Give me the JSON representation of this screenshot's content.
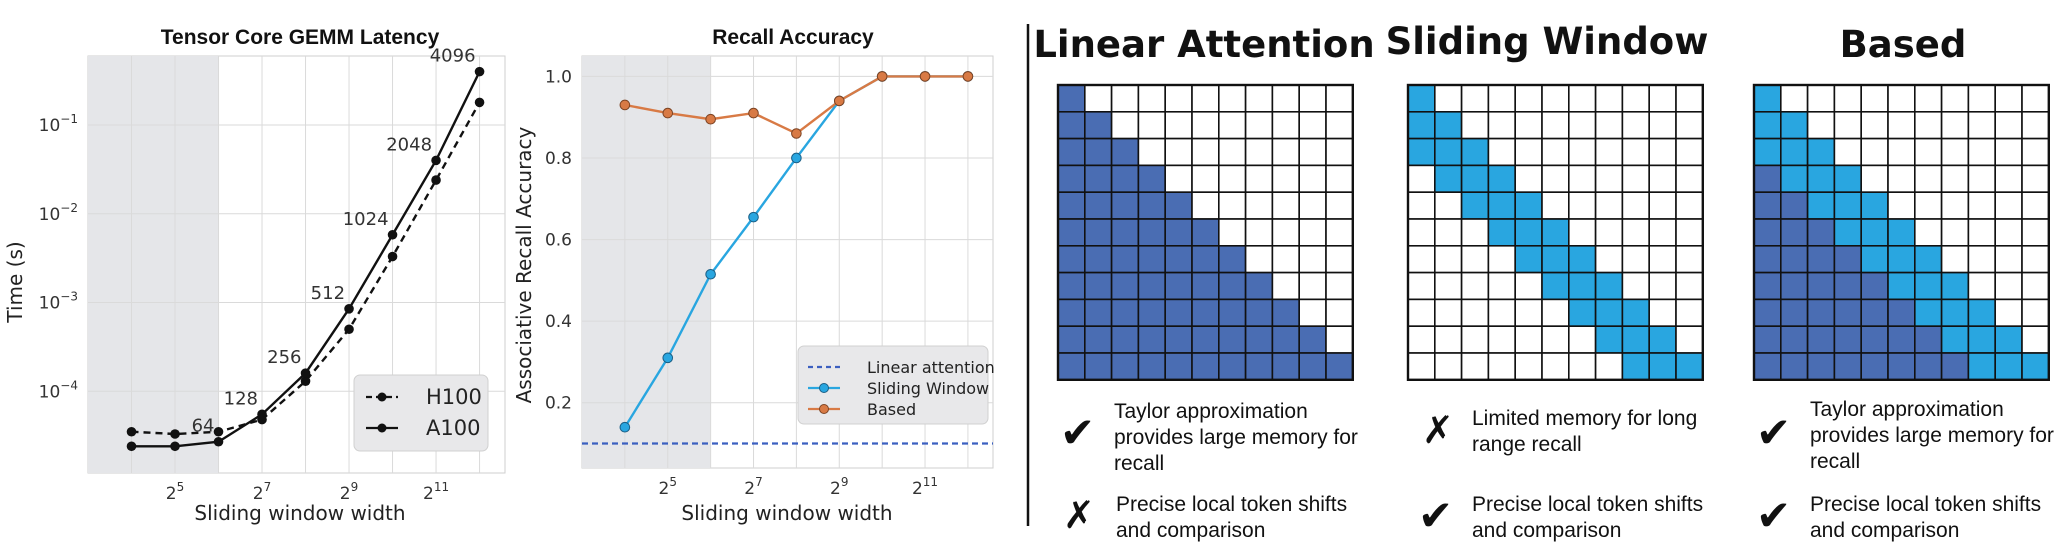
{
  "colors": {
    "shade": "#e5e6e9",
    "grid": "#dadada",
    "black": "#111111",
    "blue_dark": "#4a6db3",
    "blue_light": "#29a6e0",
    "orange": "#d87a45",
    "check_green": "#1a9e4a",
    "cross_red": "#e02020"
  },
  "chart_data": [
    {
      "type": "line",
      "title": "Tensor Core GEMM Latency",
      "xlabel": "Sliding window width",
      "ylabel": "Time (s)",
      "x_scale": "log2",
      "y_scale": "log10",
      "xlim": [
        8,
        6144
      ],
      "ylim": [
        1.2e-05,
        0.6
      ],
      "x": [
        16,
        32,
        64,
        128,
        256,
        512,
        1024,
        2048,
        4096
      ],
      "x_ticks": [
        {
          "value": 32,
          "base": "2",
          "exp": "5"
        },
        {
          "value": 128,
          "base": "2",
          "exp": "7"
        },
        {
          "value": 512,
          "base": "2",
          "exp": "9"
        },
        {
          "value": 2048,
          "base": "2",
          "exp": "11"
        }
      ],
      "y_ticks": [
        {
          "value": 0.0001,
          "base": "10",
          "exp": "−4"
        },
        {
          "value": 0.001,
          "base": "10",
          "exp": "−3"
        },
        {
          "value": 0.01,
          "base": "10",
          "exp": "−2"
        },
        {
          "value": 0.1,
          "base": "10",
          "exp": "−1"
        }
      ],
      "shaded_x_range": [
        8,
        64
      ],
      "grid": true,
      "series": [
        {
          "name": "H100",
          "style": "dashed",
          "values": [
            3.5e-05,
            3.3e-05,
            3.5e-05,
            4.8e-05,
            0.00013,
            0.0005,
            0.0033,
            0.024,
            0.18
          ]
        },
        {
          "name": "A100",
          "style": "solid",
          "values": [
            2.4e-05,
            2.4e-05,
            2.7e-05,
            5.5e-05,
            0.00016,
            0.00085,
            0.0058,
            0.04,
            0.4
          ]
        }
      ],
      "point_labels": [
        {
          "x": 64,
          "text": "64"
        },
        {
          "x": 128,
          "text": "128"
        },
        {
          "x": 256,
          "text": "256"
        },
        {
          "x": 512,
          "text": "512"
        },
        {
          "x": 1024,
          "text": "1024"
        },
        {
          "x": 2048,
          "text": "2048"
        },
        {
          "x": 4096,
          "text": "4096"
        }
      ],
      "legend": {
        "placement": "lower-right",
        "entries": [
          "H100",
          "A100"
        ]
      }
    },
    {
      "type": "line",
      "title": "Recall Accuracy",
      "xlabel": "Sliding window width",
      "ylabel": "Associative Recall Accuracy",
      "x_scale": "log2",
      "xlim": [
        8,
        6144
      ],
      "ylim": [
        0.04,
        1.05
      ],
      "x": [
        16,
        32,
        64,
        128,
        256,
        512,
        1024,
        2048,
        4096
      ],
      "x_ticks": [
        {
          "value": 32,
          "base": "2",
          "exp": "5"
        },
        {
          "value": 128,
          "base": "2",
          "exp": "7"
        },
        {
          "value": 512,
          "base": "2",
          "exp": "9"
        },
        {
          "value": 2048,
          "base": "2",
          "exp": "11"
        }
      ],
      "y_ticks": [
        {
          "value": 0.2,
          "label": "0.2"
        },
        {
          "value": 0.4,
          "label": "0.4"
        },
        {
          "value": 0.6,
          "label": "0.6"
        },
        {
          "value": 0.8,
          "label": "0.8"
        },
        {
          "value": 1.0,
          "label": "1.0"
        }
      ],
      "shaded_x_range": [
        8,
        64
      ],
      "grid": true,
      "series": [
        {
          "name": "Linear attention",
          "style": "dashed",
          "color": "#3b5fc0",
          "constant": 0.1
        },
        {
          "name": "Sliding Window",
          "style": "solid",
          "color": "#29a6e0",
          "values": [
            0.14,
            0.31,
            0.515,
            0.655,
            0.8,
            0.94,
            1.0,
            1.0,
            1.0
          ]
        },
        {
          "name": "Based",
          "style": "solid",
          "color": "#d87a45",
          "values": [
            0.93,
            0.91,
            0.895,
            0.91,
            0.86,
            0.94,
            1.0,
            1.0,
            1.0
          ]
        }
      ],
      "legend": {
        "placement": "lower-right",
        "entries": [
          "Linear attention",
          "Sliding Window",
          "Based"
        ]
      }
    }
  ],
  "attention_panels": [
    {
      "title": "Linear Attention",
      "mask_type": "linear",
      "grid_size": 11,
      "points": [
        {
          "mark": "check",
          "text_lines": [
            "Taylor approximation",
            "provides large memory for",
            "recall"
          ]
        },
        {
          "mark": "cross",
          "text_lines": [
            "Precise local token shifts",
            "and comparison"
          ]
        }
      ]
    },
    {
      "title": "Sliding Window",
      "mask_type": "window",
      "grid_size": 11,
      "window": 3,
      "points": [
        {
          "mark": "cross",
          "text_lines": [
            "Limited memory for long",
            "range recall"
          ]
        },
        {
          "mark": "check",
          "text_lines": [
            "Precise local token shifts",
            "and comparison"
          ]
        }
      ]
    },
    {
      "title": "Based",
      "mask_type": "based",
      "grid_size": 11,
      "window": 3,
      "points": [
        {
          "mark": "check",
          "text_lines": [
            "Taylor approximation",
            "provides large memory for",
            "recall"
          ]
        },
        {
          "mark": "check",
          "text_lines": [
            "Precise local token shifts",
            "and comparison"
          ]
        }
      ]
    }
  ],
  "marks": {
    "check": "✔",
    "cross": "✗"
  }
}
